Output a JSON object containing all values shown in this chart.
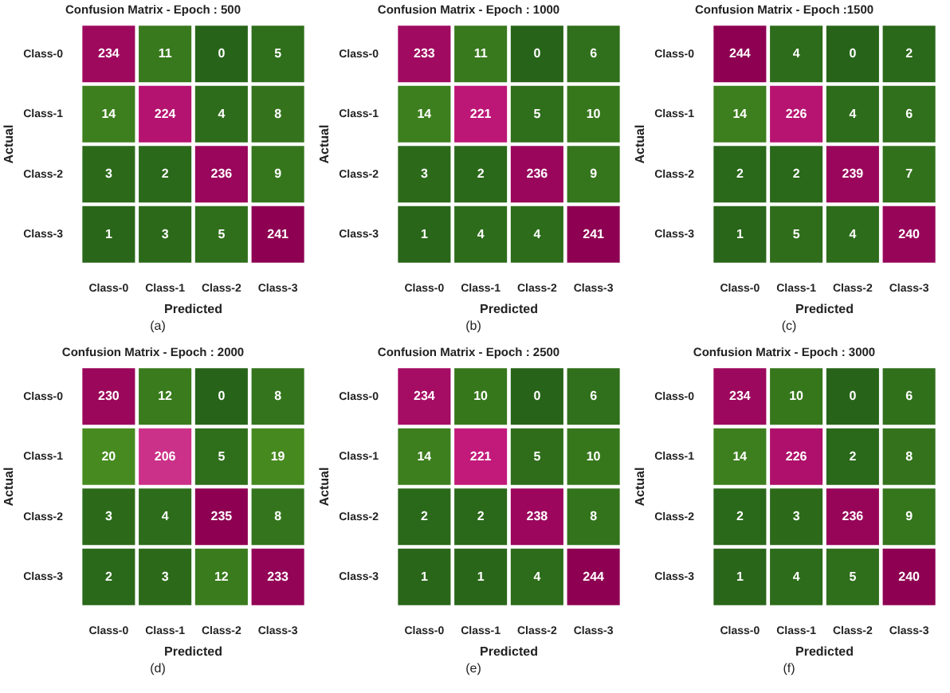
{
  "chart_data": [
    {
      "type": "heatmap",
      "title": "Confusion Matrix - Epoch : 500",
      "xlabel": "Predicted",
      "ylabel": "Actual",
      "categories": [
        "Class-0",
        "Class-1",
        "Class-2",
        "Class-3"
      ],
      "y_categories": [
        "Class-0",
        "Class-1",
        "Class-2",
        "Class-3"
      ],
      "cells": [
        [
          234,
          11,
          0,
          5
        ],
        [
          14,
          224,
          4,
          8
        ],
        [
          3,
          2,
          236,
          9
        ],
        [
          1,
          3,
          5,
          241
        ]
      ],
      "data_labels": true,
      "annotations": [
        "(a)"
      ]
    },
    {
      "type": "heatmap",
      "title": "Confusion Matrix - Epoch : 1000",
      "xlabel": "Predicted",
      "ylabel": "Actual",
      "categories": [
        "Class-0",
        "Class-1",
        "Class-2",
        "Class-3"
      ],
      "y_categories": [
        "Class-0",
        "Class-1",
        "Class-2",
        "Class-3"
      ],
      "cells": [
        [
          233,
          11,
          0,
          6
        ],
        [
          14,
          221,
          5,
          10
        ],
        [
          3,
          2,
          236,
          9
        ],
        [
          1,
          4,
          4,
          241
        ]
      ],
      "data_labels": true,
      "annotations": [
        "(b)"
      ]
    },
    {
      "type": "heatmap",
      "title": "Confusion Matrix - Epoch :1500",
      "xlabel": "Predicted",
      "ylabel": "Actual",
      "categories": [
        "Class-0",
        "Class-1",
        "Class-2",
        "Class-3"
      ],
      "y_categories": [
        "Class-0",
        "Class-1",
        "Class-2",
        "Class-3"
      ],
      "cells": [
        [
          244,
          4,
          0,
          2
        ],
        [
          14,
          226,
          4,
          6
        ],
        [
          2,
          2,
          239,
          7
        ],
        [
          1,
          5,
          4,
          240
        ]
      ],
      "data_labels": true,
      "annotations": [
        "(c)"
      ]
    },
    {
      "type": "heatmap",
      "title": "Confusion Matrix - Epoch : 2000",
      "xlabel": "Predicted",
      "ylabel": "Actual",
      "categories": [
        "Class-0",
        "Class-1",
        "Class-2",
        "Class-3"
      ],
      "y_categories": [
        "Class-0",
        "Class-1",
        "Class-2",
        "Class-3"
      ],
      "cells": [
        [
          230,
          12,
          0,
          8
        ],
        [
          20,
          206,
          5,
          19
        ],
        [
          3,
          4,
          235,
          8
        ],
        [
          2,
          3,
          12,
          233
        ]
      ],
      "data_labels": true,
      "annotations": [
        "(d)"
      ]
    },
    {
      "type": "heatmap",
      "title": "Confusion Matrix - Epoch : 2500",
      "xlabel": "Predicted",
      "ylabel": "Actual",
      "categories": [
        "Class-0",
        "Class-1",
        "Class-2",
        "Class-3"
      ],
      "y_categories": [
        "Class-0",
        "Class-1",
        "Class-2",
        "Class-3"
      ],
      "cells": [
        [
          234,
          10,
          0,
          6
        ],
        [
          14,
          221,
          5,
          10
        ],
        [
          2,
          2,
          238,
          8
        ],
        [
          1,
          1,
          4,
          244
        ]
      ],
      "data_labels": true,
      "annotations": [
        "(e)"
      ]
    },
    {
      "type": "heatmap",
      "title": "Confusion Matrix - Epoch : 3000",
      "xlabel": "Predicted",
      "ylabel": "Actual",
      "categories": [
        "Class-0",
        "Class-1",
        "Class-2",
        "Class-3"
      ],
      "y_categories": [
        "Class-0",
        "Class-1",
        "Class-2",
        "Class-3"
      ],
      "cells": [
        [
          234,
          10,
          0,
          6
        ],
        [
          14,
          226,
          2,
          8
        ],
        [
          2,
          3,
          236,
          9
        ],
        [
          1,
          4,
          5,
          240
        ]
      ],
      "data_labels": true,
      "annotations": [
        "(f)"
      ]
    }
  ]
}
